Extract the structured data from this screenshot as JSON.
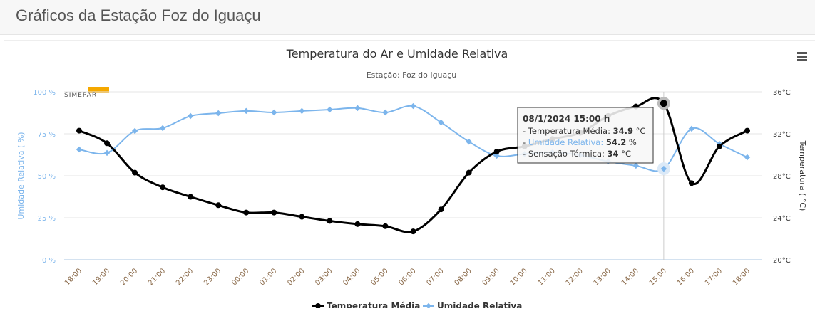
{
  "page_title": "Gráficos da Estação Foz do Iguaçu",
  "logo_text": "SIMEPAR",
  "menu_icon": "hamburger-icon",
  "chart_data": {
    "type": "line",
    "title": "Temperatura do Ar e Umidade Relativa",
    "subtitle": "Estação: Foz do Iguaçu",
    "categories": [
      "18:00",
      "19:00",
      "20:00",
      "21:00",
      "22:00",
      "23:00",
      "00:00",
      "01:00",
      "02:00",
      "03:00",
      "04:00",
      "05:00",
      "06:00",
      "07:00",
      "08:00",
      "09:00",
      "10:00",
      "11:00",
      "12:00",
      "13:00",
      "14:00",
      "15:00",
      "16:00",
      "17:00",
      "18:00"
    ],
    "y_left": {
      "label": "Umidade Relativa ( %)",
      "range": [
        0,
        100
      ],
      "ticks": [
        "0 %",
        "25 %",
        "50 %",
        "75 %",
        "100 %"
      ],
      "color": "#7cb5ec"
    },
    "y_right": {
      "label": "Temperatura ( °C)",
      "range": [
        20,
        36
      ],
      "ticks": [
        "20°C",
        "24°C",
        "28°C",
        "32°C",
        "36°C"
      ]
    },
    "series": [
      {
        "name": "Temperatura Média",
        "axis": "right",
        "color": "#000000",
        "values": [
          32.3,
          31.1,
          28.3,
          26.9,
          26.0,
          25.2,
          24.5,
          24.5,
          24.1,
          23.7,
          23.4,
          23.2,
          22.7,
          24.8,
          28.3,
          30.3,
          30.8,
          31.5,
          32.1,
          33.7,
          34.6,
          34.9,
          27.3,
          30.8,
          32.3
        ]
      },
      {
        "name": "Umidade Relativa",
        "axis": "left",
        "color": "#7cb5ec",
        "values": [
          65.7,
          63.6,
          76.7,
          78.4,
          85.6,
          87.3,
          88.6,
          87.7,
          88.6,
          89.4,
          90.3,
          87.7,
          91.5,
          81.8,
          70.3,
          61.9,
          63.0,
          64.0,
          62.3,
          58.5,
          56.0,
          54.2,
          78.0,
          69.0,
          61.0
        ]
      }
    ],
    "legend": "bottom-center",
    "tooltip": {
      "title": "08/1/2024 15:00 h",
      "lines": [
        {
          "label": "Temperatura Média",
          "value": "34.9",
          "unit": "°C"
        },
        {
          "label": "Umidade Relativa",
          "value": "54.2",
          "unit": "%"
        },
        {
          "label": "Sensação Térmica",
          "value": "34",
          "unit": "°C"
        }
      ],
      "index": 21
    }
  }
}
